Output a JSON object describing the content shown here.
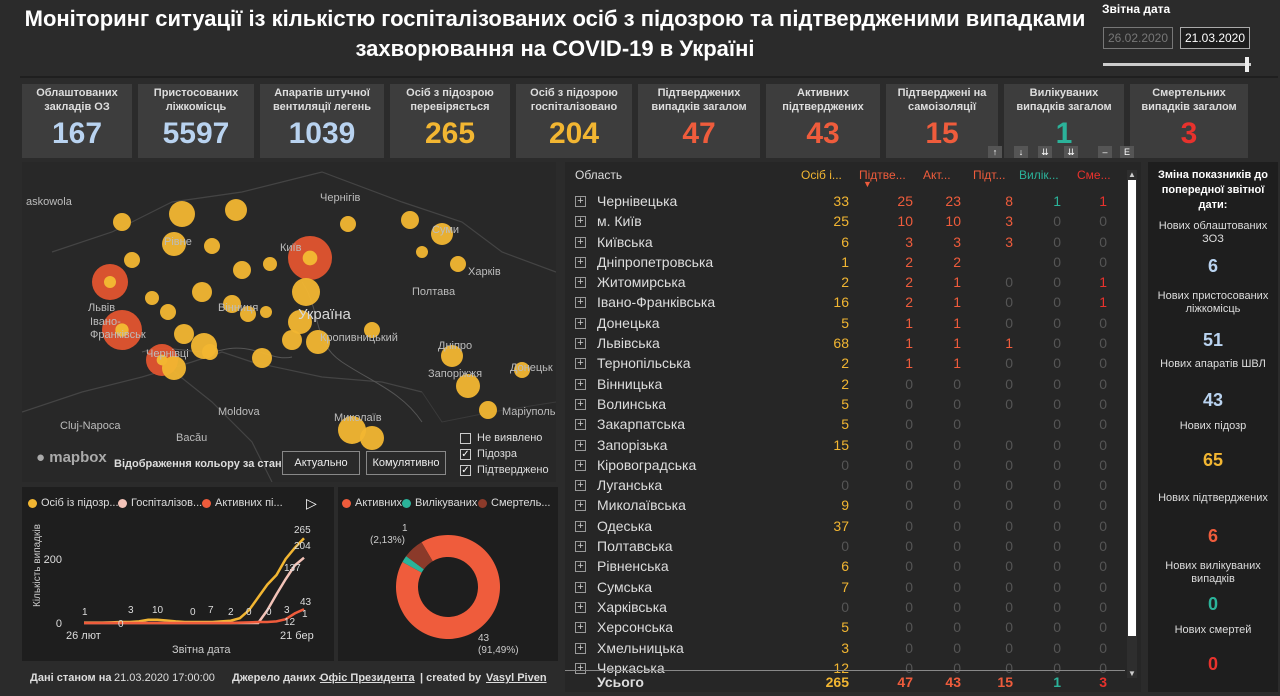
{
  "title": "Моніторинг ситуації із кількістю госпіталізованих осіб з підозрою та підтвердженими випадками захворювання на COVID-19 в Україні",
  "report_date": {
    "label": "Звітна дата",
    "from": "26.02.2020",
    "to": "21.03.2020"
  },
  "kpis": [
    {
      "label": "Облаштованих закладів ОЗ",
      "value": "167",
      "color": "#b9d3f0"
    },
    {
      "label": "Пристосованих ліжкомісць",
      "value": "5597",
      "color": "#b9d3f0"
    },
    {
      "label": "Апаратів штучної вентиляції легень",
      "value": "1039",
      "color": "#b9d3f0"
    },
    {
      "label": "Осіб з підозрою перевіряється",
      "value": "265",
      "color": "#f2b632"
    },
    {
      "label": "Осіб з підозрою госпіталізовано",
      "value": "204",
      "color": "#f2b632"
    },
    {
      "label": "Підтверджених випадків загалом",
      "value": "47",
      "color": "#ef5c3c"
    },
    {
      "label": "Активних підтверджених",
      "value": "43",
      "color": "#ef5c3c"
    },
    {
      "label": "Підтверджені на самоізоляції",
      "value": "15",
      "color": "#ef5c3c"
    },
    {
      "label": "Вилікуваних випадків загалом",
      "value": "1",
      "color": "#2bb39a"
    },
    {
      "label": "Смертельних випадків загалом",
      "value": "3",
      "color": "#e8322d"
    }
  ],
  "map": {
    "labels": {
      "kaskowola": "askowola",
      "chernihiv": "Чернігів",
      "sumy": "Суми",
      "rivne": "Рівне",
      "kyiv": "Київ",
      "kharkiv": "Харків",
      "lviv": "Львів",
      "poltava": "Полтава",
      "ivano": "Івано-Франківськ",
      "vinnytsia": "Вінниця",
      "ukraine": "Україна",
      "kropyvnytskyi": "Кропивницький",
      "dnipro": "Дніпро",
      "chernivtsi": "Чернівці",
      "zaporizhzhia": "Запоріжжя",
      "donetsk": "Донецьк",
      "moldova": "Moldova",
      "mykolaiv": "Миколаїв",
      "mariupol": "Маріуполь",
      "cluj": "Cluj-Napoca",
      "bacau": "Bacău"
    },
    "logo": "mapbox",
    "color_by_label": "Відображення кольору за станом:",
    "btn_current": "Актуально",
    "btn_cumulative": "Комулятивно",
    "legend": [
      {
        "label": "Не виявлено",
        "checked": false
      },
      {
        "label": "Підозра",
        "checked": true
      },
      {
        "label": "Підтверджено",
        "checked": true
      }
    ]
  },
  "line_chart": {
    "legend": [
      {
        "name": "Осіб із підозр...",
        "color": "#f2b632"
      },
      {
        "name": "Госпіталізов...",
        "color": "#f3c3b8"
      },
      {
        "name": "Активних пі...",
        "color": "#ef5c3c"
      }
    ],
    "ylabel": "Кількість випадків",
    "xlabel": "Звітна дата",
    "x_start": "26 лют",
    "x_end": "21 бер",
    "ytick_200": "200",
    "ytick_0": "0",
    "point_labels": [
      "1",
      "0",
      "3",
      "10",
      "0",
      "7",
      "2",
      "0",
      "0",
      "3",
      "12",
      "265",
      "204",
      "137",
      "43",
      "1"
    ]
  },
  "chart_data": {
    "type": "line",
    "x": [
      "26 лют",
      "27 лют",
      "28 лют",
      "29 лют",
      "01 бер",
      "02 бер",
      "03 бер",
      "04 бер",
      "05 бер",
      "06 бер",
      "07 бер",
      "08 бер",
      "09 бер",
      "10 бер",
      "11 бер",
      "12 бер",
      "13 бер",
      "14 бер",
      "15 бер",
      "16 бер",
      "17 бер",
      "18 бер",
      "19 бер",
      "20 бер",
      "21 бер"
    ],
    "series": [
      {
        "name": "Осіб із підозр...",
        "values": [
          1,
          1,
          1,
          2,
          3,
          3,
          5,
          10,
          10,
          8,
          5,
          3,
          3,
          3,
          3,
          5,
          7,
          15,
          40,
          80,
          120,
          150,
          200,
          235,
          265
        ]
      },
      {
        "name": "Госпіталізов...",
        "values": [
          0,
          0,
          0,
          0,
          0,
          0,
          0,
          0,
          0,
          0,
          0,
          0,
          0,
          0,
          0,
          0,
          0,
          0,
          0,
          0,
          40,
          90,
          137,
          180,
          204
        ]
      },
      {
        "name": "Активних пі...",
        "values": [
          0,
          0,
          0,
          0,
          0,
          0,
          0,
          0,
          0,
          0,
          0,
          0,
          0,
          0,
          0,
          0,
          0,
          1,
          2,
          3,
          3,
          5,
          12,
          30,
          43
        ]
      }
    ],
    "xlabel": "Звітна дата",
    "ylabel": "Кількість випадків",
    "ylim": [
      0,
      300
    ]
  },
  "donut": {
    "legend": [
      {
        "name": "Активних",
        "color": "#ef5c3c"
      },
      {
        "name": "Вилікуваних",
        "color": "#2bb39a"
      },
      {
        "name": "Смертель...",
        "color": "#8b3a2a"
      }
    ],
    "slices": [
      {
        "name": "Активних",
        "value": 43,
        "pct": "(91,49%)",
        "color": "#ef5c3c"
      },
      {
        "name": "Вилікуваних",
        "value": 1,
        "pct": "(2,13%)",
        "color": "#2bb39a"
      },
      {
        "name": "Смертель...",
        "value": 3,
        "pct": "",
        "color": "#8b3a2a"
      }
    ],
    "label_top_value": "1",
    "label_top_pct": "(2,13%)",
    "label_bottom_value": "43",
    "label_bottom_pct": "(91,49%)"
  },
  "table": {
    "headers": {
      "region": "Область",
      "c1": "Осіб і...",
      "c2": "Підтве...",
      "c3": "Акт...",
      "c4": "Підт...",
      "c5": "Вилік...",
      "c6": "Сме..."
    },
    "rows": [
      {
        "name": "Чернівецька",
        "v": [
          33,
          25,
          23,
          8,
          1,
          1
        ]
      },
      {
        "name": "м. Київ",
        "v": [
          25,
          10,
          10,
          3,
          0,
          0
        ]
      },
      {
        "name": "Київська",
        "v": [
          6,
          3,
          3,
          3,
          0,
          0
        ]
      },
      {
        "name": "Дніпропетровська",
        "v": [
          1,
          2,
          2,
          null,
          0,
          0
        ]
      },
      {
        "name": "Житомирська",
        "v": [
          2,
          2,
          1,
          0,
          0,
          1
        ]
      },
      {
        "name": "Івано-Франківська",
        "v": [
          16,
          2,
          1,
          0,
          0,
          1
        ]
      },
      {
        "name": "Донецька",
        "v": [
          5,
          1,
          1,
          0,
          0,
          0
        ]
      },
      {
        "name": "Львівська",
        "v": [
          68,
          1,
          1,
          1,
          0,
          0
        ]
      },
      {
        "name": "Тернопільська",
        "v": [
          2,
          1,
          1,
          0,
          0,
          0
        ]
      },
      {
        "name": "Вінницька",
        "v": [
          2,
          0,
          0,
          0,
          0,
          0
        ]
      },
      {
        "name": "Волинська",
        "v": [
          5,
          0,
          0,
          0,
          0,
          0
        ]
      },
      {
        "name": "Закарпатська",
        "v": [
          5,
          0,
          0,
          null,
          0,
          0
        ]
      },
      {
        "name": "Запорізька",
        "v": [
          15,
          0,
          0,
          0,
          0,
          0
        ]
      },
      {
        "name": "Кіровоградська",
        "v": [
          0,
          0,
          0,
          0,
          0,
          0
        ]
      },
      {
        "name": "Луганська",
        "v": [
          0,
          0,
          0,
          0,
          0,
          0
        ]
      },
      {
        "name": "Миколаївська",
        "v": [
          9,
          0,
          0,
          0,
          0,
          0
        ]
      },
      {
        "name": "Одеська",
        "v": [
          37,
          0,
          0,
          0,
          0,
          0
        ]
      },
      {
        "name": "Полтавська",
        "v": [
          0,
          0,
          0,
          0,
          0,
          0
        ]
      },
      {
        "name": "Рівненська",
        "v": [
          6,
          0,
          0,
          0,
          0,
          0
        ]
      },
      {
        "name": "Сумська",
        "v": [
          7,
          0,
          0,
          0,
          0,
          0
        ]
      },
      {
        "name": "Харківська",
        "v": [
          0,
          0,
          0,
          0,
          0,
          0
        ]
      },
      {
        "name": "Херсонська",
        "v": [
          5,
          0,
          0,
          0,
          0,
          0
        ]
      },
      {
        "name": "Хмельницька",
        "v": [
          3,
          0,
          0,
          0,
          0,
          0
        ]
      },
      {
        "name": "Черкаська",
        "v": [
          12,
          0,
          0,
          0,
          0,
          0
        ]
      }
    ],
    "total": {
      "label": "Усього",
      "v": [
        "265",
        "47",
        "43",
        "15",
        "1",
        "3"
      ]
    }
  },
  "side": {
    "header": "Зміна показників до попередної звітної дати:",
    "items": [
      {
        "label": "Нових облаштованих ЗОЗ",
        "value": "6",
        "color": "#b9d3f0"
      },
      {
        "label": "Нових пристосованих ліжкомісць",
        "value": "51",
        "color": "#b9d3f0"
      },
      {
        "label": "Нових апаратів ШВЛ",
        "value": "43",
        "color": "#b9d3f0"
      },
      {
        "label": "Нових підозр",
        "value": "65",
        "color": "#f2b632"
      },
      {
        "label": "Нових підтверджених",
        "value": "6",
        "color": "#ef5c3c"
      },
      {
        "label": "Нових вилікуваних випадків",
        "value": "0",
        "color": "#2bb39a"
      },
      {
        "label": "Нових смертей",
        "value": "0",
        "color": "#e8322d"
      }
    ]
  },
  "footer": {
    "as_of_label": "Дані станом на",
    "as_of_value": "21.03.2020 17:00:00",
    "source_label": "Джерело даних -",
    "source_link": "Офіс Президента",
    "created_label": "| created by",
    "author": "Vasyl Piven"
  }
}
